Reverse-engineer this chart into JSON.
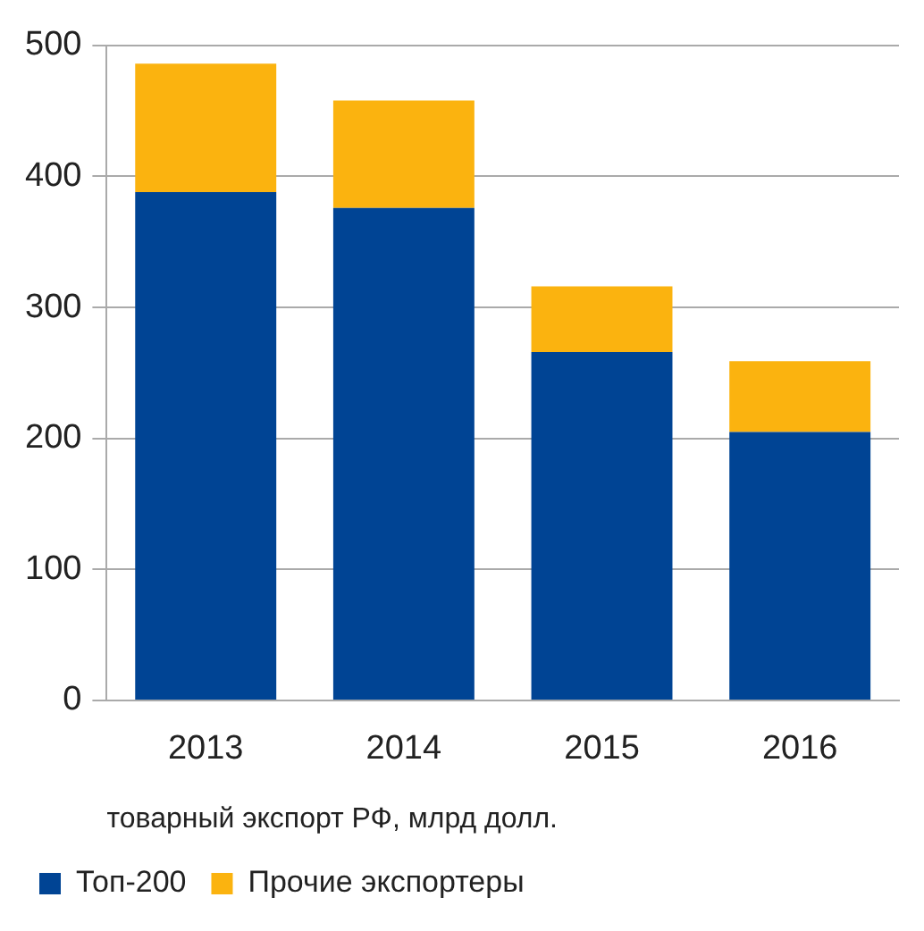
{
  "chart_data": {
    "type": "bar",
    "stacked": true,
    "categories": [
      "2013",
      "2014",
      "2015",
      "2016"
    ],
    "series": [
      {
        "name": "Топ-200",
        "color": "#004494",
        "values": [
          388,
          376,
          266,
          205
        ]
      },
      {
        "name": "Прочие экспортеры",
        "color": "#fbb30f",
        "values": [
          98,
          82,
          50,
          54
        ]
      }
    ],
    "xlabel": "товарный экспорт РФ, млрд долл.",
    "ylim": [
      0,
      500
    ],
    "yticks": [
      0,
      100,
      200,
      300,
      400,
      500
    ],
    "grid": "y",
    "legend": "bottom"
  }
}
